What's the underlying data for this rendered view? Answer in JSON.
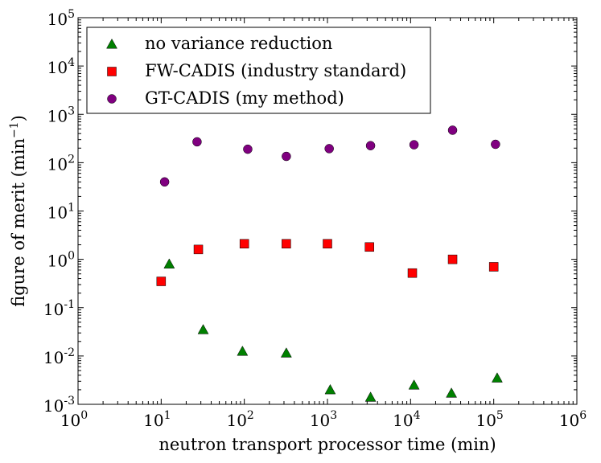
{
  "chart_data": {
    "type": "scatter",
    "xscale": "log",
    "yscale": "log",
    "xlim": [
      1,
      1000000
    ],
    "ylim": [
      0.001,
      100000
    ],
    "xlabel": "neutron transport processor time (min)",
    "ylabel_prefix": "figure of merit (min",
    "ylabel_exp": "−1",
    "ylabel_suffix": ")",
    "grid": false,
    "legend_position": "upper-left",
    "x_ticks": [
      {
        "base": "10",
        "exp": "0",
        "value": 1
      },
      {
        "base": "10",
        "exp": "1",
        "value": 10
      },
      {
        "base": "10",
        "exp": "2",
        "value": 100
      },
      {
        "base": "10",
        "exp": "3",
        "value": 1000
      },
      {
        "base": "10",
        "exp": "4",
        "value": 10000
      },
      {
        "base": "10",
        "exp": "5",
        "value": 100000
      },
      {
        "base": "10",
        "exp": "6",
        "value": 1000000
      }
    ],
    "y_ticks": [
      {
        "base": "10",
        "exp": "-3",
        "value": 0.001
      },
      {
        "base": "10",
        "exp": "-2",
        "value": 0.01
      },
      {
        "base": "10",
        "exp": "-1",
        "value": 0.1
      },
      {
        "base": "10",
        "exp": "0",
        "value": 1
      },
      {
        "base": "10",
        "exp": "1",
        "value": 10
      },
      {
        "base": "10",
        "exp": "2",
        "value": 100
      },
      {
        "base": "10",
        "exp": "3",
        "value": 1000
      },
      {
        "base": "10",
        "exp": "4",
        "value": 10000
      },
      {
        "base": "10",
        "exp": "5",
        "value": 100000
      }
    ],
    "series": [
      {
        "name": "no variance reduction",
        "marker": "triangle",
        "color": "#008000",
        "points": [
          {
            "x": 12.5,
            "y": 0.8
          },
          {
            "x": 32,
            "y": 0.035
          },
          {
            "x": 95,
            "y": 0.0125
          },
          {
            "x": 320,
            "y": 0.0115
          },
          {
            "x": 1080,
            "y": 0.002
          },
          {
            "x": 3300,
            "y": 0.0014
          },
          {
            "x": 11000,
            "y": 0.0025
          },
          {
            "x": 31000,
            "y": 0.0017
          },
          {
            "x": 110000,
            "y": 0.0035
          }
        ]
      },
      {
        "name": "FW-CADIS (industry standard)",
        "marker": "square",
        "color": "#ff0000",
        "points": [
          {
            "x": 10,
            "y": 0.35
          },
          {
            "x": 28,
            "y": 1.6
          },
          {
            "x": 100,
            "y": 2.1
          },
          {
            "x": 320,
            "y": 2.1
          },
          {
            "x": 1000,
            "y": 2.1
          },
          {
            "x": 3200,
            "y": 1.8
          },
          {
            "x": 10500,
            "y": 0.52
          },
          {
            "x": 32000,
            "y": 1.0
          },
          {
            "x": 100000,
            "y": 0.7
          }
        ]
      },
      {
        "name": "GT-CADIS (my method)",
        "marker": "circle",
        "color": "#800080",
        "points": [
          {
            "x": 11,
            "y": 40
          },
          {
            "x": 27,
            "y": 270
          },
          {
            "x": 110,
            "y": 190
          },
          {
            "x": 320,
            "y": 135
          },
          {
            "x": 1050,
            "y": 195
          },
          {
            "x": 3300,
            "y": 225
          },
          {
            "x": 11000,
            "y": 235
          },
          {
            "x": 32000,
            "y": 470
          },
          {
            "x": 105000,
            "y": 240
          }
        ]
      }
    ]
  }
}
